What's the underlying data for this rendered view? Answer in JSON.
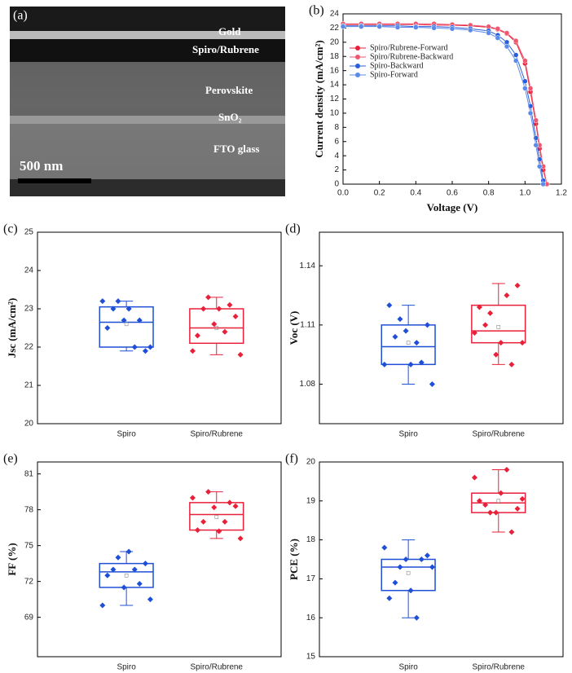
{
  "image": {
    "label": "(a)",
    "layers": [
      "Gold",
      "Spiro/Rubrene",
      "Perovskite",
      "SnO₂",
      "FTO glass"
    ],
    "scale_bar": "500 nm"
  },
  "chart_data": [
    {
      "type": "line",
      "panel_label": "(b)",
      "x_label": "Voltage (V)",
      "y_label": "Current density (mA/cm²)",
      "x": [
        0,
        0.1,
        0.2,
        0.3,
        0.4,
        0.5,
        0.6,
        0.7,
        0.8,
        0.85,
        0.9,
        0.95,
        1.0,
        1.03,
        1.06,
        1.08,
        1.1,
        1.12
      ],
      "series": [
        {
          "name": "Spiro/Rubrene-Forward",
          "color": "#e8203a",
          "values": [
            22.5,
            22.5,
            22.5,
            22.5,
            22.5,
            22.4,
            22.4,
            22.3,
            22.1,
            21.8,
            21.2,
            20.0,
            17.0,
            13.0,
            8.5,
            5.0,
            2.0,
            0
          ]
        },
        {
          "name": "Spiro/Rubrene-Backward",
          "color": "#f0566e",
          "values": [
            22.6,
            22.6,
            22.6,
            22.6,
            22.6,
            22.6,
            22.5,
            22.4,
            22.2,
            21.9,
            21.3,
            20.2,
            17.4,
            13.5,
            9.0,
            5.5,
            2.5,
            0
          ]
        },
        {
          "name": "Spiro-Backward",
          "color": "#2b5fd9",
          "values": [
            22.3,
            22.3,
            22.3,
            22.3,
            22.2,
            22.2,
            22.1,
            21.9,
            21.6,
            21.0,
            20.0,
            18.2,
            14.5,
            11.0,
            6.5,
            3.5,
            0.5,
            null
          ]
        },
        {
          "name": "Spiro-Forward",
          "color": "#5b8be8",
          "values": [
            22.2,
            22.2,
            22.2,
            22.1,
            22.1,
            22.0,
            21.9,
            21.7,
            21.3,
            20.6,
            19.4,
            17.4,
            13.5,
            10.0,
            5.5,
            2.5,
            0,
            null
          ]
        }
      ],
      "xlim": [
        0,
        1.2
      ],
      "xticks": [
        {
          "value": 0,
          "label": "0.0"
        },
        0.2,
        0.4,
        0.6,
        0.8,
        {
          "value": 1,
          "label": "1.0"
        },
        1.2
      ],
      "ylim": [
        0,
        24
      ],
      "yticks": [
        0,
        2,
        4,
        6,
        8,
        10,
        12,
        14,
        16,
        18,
        20,
        22,
        24
      ],
      "legend": "upper-left"
    },
    {
      "type": "box",
      "panel_label": "(c)",
      "y_label": "Jsc (mA/cm²)",
      "categories": [
        "Spiro",
        "Spiro/Rubrene"
      ],
      "ylim": [
        20,
        25
      ],
      "yticks": [
        20,
        21,
        22,
        23,
        24,
        25
      ],
      "boxes": [
        {
          "color": "#1f4fd6",
          "whisker": [
            21.9,
            23.2
          ],
          "q1": 22.0,
          "median": 22.65,
          "q3": 23.05,
          "mean": 22.6,
          "points": [
            23.2,
            23.0,
            22.7,
            22.0,
            21.9,
            22.5,
            23.2,
            23.0,
            22.7,
            22.0
          ]
        },
        {
          "color": "#e8203a",
          "whisker": [
            21.8,
            23.3
          ],
          "q1": 22.1,
          "median": 22.5,
          "q3": 23.0,
          "mean": 22.5,
          "points": [
            21.9,
            23.0,
            22.6,
            22.4,
            22.8,
            22.3,
            23.3,
            23.0,
            23.1,
            21.8
          ]
        }
      ]
    },
    {
      "type": "box",
      "panel_label": "(d)",
      "y_label": "Voc (V)",
      "categories": [
        "Spiro",
        "Spiro/Rubrene"
      ],
      "ylim": [
        1.06,
        1.157
      ],
      "yticks": [
        1.08,
        1.11,
        1.14
      ],
      "boxes": [
        {
          "color": "#1f4fd6",
          "whisker": [
            1.08,
            1.12
          ],
          "q1": 1.09,
          "median": 1.099,
          "q3": 1.11,
          "mean": 1.101,
          "points": [
            1.09,
            1.104,
            1.107,
            1.101,
            1.11,
            1.12,
            1.113,
            1.09,
            1.091,
            1.08
          ]
        },
        {
          "color": "#e8203a",
          "whisker": [
            1.09,
            1.131
          ],
          "q1": 1.101,
          "median": 1.107,
          "q3": 1.12,
          "mean": 1.109,
          "points": [
            1.106,
            1.11,
            1.095,
            1.125,
            1.13,
            1.119,
            1.116,
            1.101,
            1.09,
            1.101
          ]
        }
      ]
    },
    {
      "type": "box",
      "panel_label": "(e)",
      "y_label": "FF (%)",
      "categories": [
        "Spiro",
        "Spiro/Rubrene"
      ],
      "ylim": [
        65.7,
        82
      ],
      "yticks": [
        69,
        72,
        75,
        78,
        81
      ],
      "boxes": [
        {
          "color": "#1f4fd6",
          "whisker": [
            70,
            74.5
          ],
          "q1": 71.5,
          "median": 72.8,
          "q3": 73.5,
          "mean": 72.5,
          "points": [
            70,
            73,
            71.5,
            73,
            73.5,
            72.5,
            74,
            74.5,
            71.8,
            70.5
          ]
        },
        {
          "color": "#e8203a",
          "whisker": [
            75.6,
            79.5
          ],
          "q1": 76.3,
          "median": 77.6,
          "q3": 78.6,
          "mean": 77.4,
          "points": [
            79,
            77,
            78.2,
            77,
            78.3,
            76.3,
            79.5,
            76.2,
            78.6,
            75.6
          ]
        }
      ]
    },
    {
      "type": "box",
      "panel_label": "(f)",
      "y_label": "PCE (%)",
      "categories": [
        "Spiro",
        "Spiro/Rubrene"
      ],
      "ylim": [
        15,
        20
      ],
      "yticks": [
        15,
        16,
        17,
        18,
        19,
        20
      ],
      "boxes": [
        {
          "color": "#1f4fd6",
          "whisker": [
            16,
            18
          ],
          "q1": 16.7,
          "median": 17.3,
          "q3": 17.5,
          "mean": 17.15,
          "points": [
            17.8,
            16.9,
            17.5,
            16.0,
            17.6,
            16.5,
            17.3,
            16.7,
            17.5,
            17.3
          ]
        },
        {
          "color": "#e8203a",
          "whisker": [
            18.2,
            19.8
          ],
          "q1": 18.7,
          "median": 18.95,
          "q3": 19.2,
          "mean": 19.0,
          "points": [
            19.6,
            18.9,
            18.7,
            19.8,
            18.8,
            19.0,
            18.7,
            19.2,
            18.2,
            19.05
          ]
        }
      ]
    }
  ]
}
